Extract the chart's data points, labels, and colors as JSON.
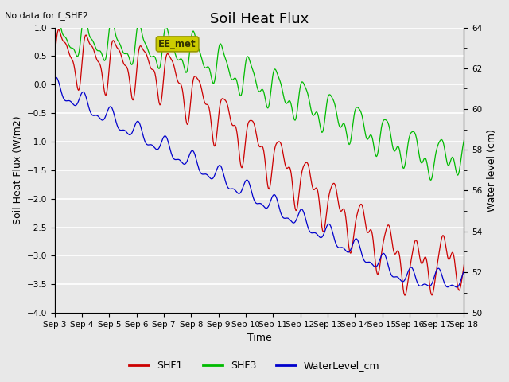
{
  "title": "Soil Heat Flux",
  "subtitle": "No data for f_SHF2",
  "ylabel_left": "Soil Heat Flux (W/m2)",
  "ylabel_right": "Water level (cm)",
  "xlabel": "Time",
  "ylim_left": [
    -4.0,
    1.0
  ],
  "ylim_right": [
    50,
    64
  ],
  "bg_color": "#e8e8e8",
  "grid_color": "white",
  "annotation_text": "EE_met",
  "annotation_bg": "#cccc00",
  "annotation_text_color": "#333300",
  "x_tick_labels": [
    "Sep 3",
    "Sep 4",
    "Sep 5",
    "Sep 6",
    "Sep 7",
    "Sep 8",
    "Sep 9",
    "Sep 10",
    "Sep 11",
    "Sep 12",
    "Sep 13",
    "Sep 14",
    "Sep 15",
    "Sep 16",
    "Sep 17",
    "Sep 18"
  ],
  "shf1_color": "#cc0000",
  "shf3_color": "#00bb00",
  "water_color": "#0000cc",
  "title_fontsize": 13,
  "label_fontsize": 9,
  "tick_fontsize": 7.5
}
